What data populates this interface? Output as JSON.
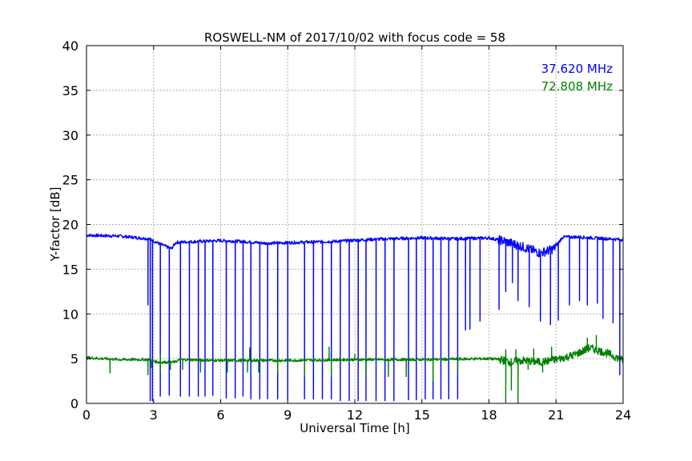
{
  "chart_data": {
    "type": "line",
    "title": "ROSWELL-NM of 2017/10/02 with focus code = 58",
    "xlabel": "Universal Time [h]",
    "ylabel": "Y-factor [dB]",
    "xlim": [
      0,
      24
    ],
    "ylim": [
      0,
      40
    ],
    "xticks": [
      0,
      3,
      6,
      9,
      12,
      15,
      18,
      21,
      24
    ],
    "yticks": [
      0,
      5,
      10,
      15,
      20,
      25,
      30,
      35,
      40
    ],
    "grid": true,
    "legend_position": "top-right",
    "series": [
      {
        "name": "37.620 MHz",
        "color": "#0000ff",
        "baseline": [
          [
            0,
            18.8
          ],
          [
            1.5,
            18.7
          ],
          [
            2.8,
            18.4
          ],
          [
            3.3,
            17.8
          ],
          [
            3.8,
            17.3
          ],
          [
            4.0,
            18.0
          ],
          [
            6.0,
            18.2
          ],
          [
            7.0,
            18.1
          ],
          [
            8.0,
            17.9
          ],
          [
            9.5,
            18.0
          ],
          [
            11.0,
            18.1
          ],
          [
            12.5,
            18.3
          ],
          [
            13.5,
            18.4
          ],
          [
            15.0,
            18.5
          ],
          [
            16.5,
            18.4
          ],
          [
            18.0,
            18.5
          ],
          [
            18.6,
            18.2
          ],
          [
            19.4,
            17.6
          ],
          [
            20.3,
            16.8
          ],
          [
            20.9,
            17.3
          ],
          [
            21.3,
            18.6
          ],
          [
            22.0,
            18.6
          ],
          [
            24,
            18.3
          ]
        ],
        "dips": [
          [
            2.75,
            11.0
          ],
          [
            2.85,
            0.3
          ],
          [
            2.95,
            0.3
          ],
          [
            3.3,
            0.8
          ],
          [
            3.7,
            0.9
          ],
          [
            4.2,
            0.8
          ],
          [
            4.6,
            0.8
          ],
          [
            5.0,
            0.8
          ],
          [
            5.3,
            0.8
          ],
          [
            5.65,
            0.9
          ],
          [
            6.25,
            0.6
          ],
          [
            6.65,
            0.6
          ],
          [
            7.0,
            0.8
          ],
          [
            7.35,
            0.5
          ],
          [
            7.75,
            0.5
          ],
          [
            8.1,
            0.5
          ],
          [
            8.55,
            0.5
          ],
          [
            9.0,
            0.4
          ],
          [
            9.75,
            0.5
          ],
          [
            10.15,
            0.5
          ],
          [
            10.55,
            0.5
          ],
          [
            10.95,
            0.5
          ],
          [
            11.35,
            0.3
          ],
          [
            11.75,
            0.3
          ],
          [
            12.15,
            0.3
          ],
          [
            12.5,
            0.3
          ],
          [
            12.95,
            0.3
          ],
          [
            13.35,
            0.3
          ],
          [
            13.75,
            0.3
          ],
          [
            14.4,
            0.4
          ],
          [
            14.75,
            0.4
          ],
          [
            15.15,
            0.5
          ],
          [
            15.5,
            0.5
          ],
          [
            15.85,
            0.5
          ],
          [
            16.2,
            0.5
          ],
          [
            16.6,
            0.5
          ],
          [
            16.95,
            8.2
          ],
          [
            17.15,
            8.3
          ],
          [
            17.6,
            9.2
          ],
          [
            18.45,
            10.5
          ],
          [
            18.75,
            12.5
          ],
          [
            19.05,
            13.5
          ],
          [
            19.3,
            11.5
          ],
          [
            19.8,
            10.8
          ],
          [
            20.3,
            9.2
          ],
          [
            20.75,
            8.8
          ],
          [
            21.1,
            9.3
          ],
          [
            21.6,
            11.0
          ],
          [
            22.05,
            11.5
          ],
          [
            22.4,
            11.0
          ],
          [
            22.85,
            11.2
          ],
          [
            23.1,
            9.5
          ],
          [
            23.55,
            9.0
          ],
          [
            23.85,
            3.2
          ]
        ]
      },
      {
        "name": "72.808 MHz",
        "color": "#008000",
        "baseline": [
          [
            0,
            5.1
          ],
          [
            1.5,
            4.9
          ],
          [
            2.8,
            4.9
          ],
          [
            3.2,
            4.6
          ],
          [
            3.9,
            4.6
          ],
          [
            4.2,
            4.9
          ],
          [
            6.0,
            4.8
          ],
          [
            9.0,
            4.8
          ],
          [
            12.0,
            4.9
          ],
          [
            15.0,
            4.9
          ],
          [
            18.0,
            5.0
          ],
          [
            18.5,
            4.9
          ],
          [
            19.0,
            4.6
          ],
          [
            19.5,
            4.8
          ],
          [
            20.3,
            4.6
          ],
          [
            21.0,
            4.9
          ],
          [
            21.8,
            5.4
          ],
          [
            22.5,
            6.2
          ],
          [
            23.3,
            5.6
          ],
          [
            24,
            4.8
          ]
        ],
        "dips": [
          [
            1.05,
            3.4
          ],
          [
            2.75,
            3.2
          ],
          [
            2.9,
            4.0
          ],
          [
            3.3,
            3.5
          ],
          [
            3.75,
            3.8
          ],
          [
            4.3,
            3.8
          ],
          [
            5.1,
            3.5
          ],
          [
            6.3,
            3.5
          ],
          [
            7.2,
            3.5
          ],
          [
            7.7,
            3.5
          ],
          [
            8.55,
            3.5
          ],
          [
            9.75,
            3.0
          ],
          [
            10.95,
            3.0
          ],
          [
            12.5,
            3.0
          ],
          [
            13.5,
            3.0
          ],
          [
            14.3,
            3.0
          ],
          [
            15.5,
            2.5
          ],
          [
            16.6,
            3.5
          ],
          [
            18.75,
            0.1
          ],
          [
            19.0,
            1.5
          ],
          [
            19.3,
            0.0
          ],
          [
            19.75,
            3.8
          ],
          [
            20.4,
            3.5
          ]
        ],
        "spikes": [
          [
            3.3,
            5.4
          ],
          [
            7.3,
            6.2
          ],
          [
            10.85,
            6.3
          ],
          [
            12.0,
            5.5
          ],
          [
            18.75,
            6.0
          ],
          [
            19.2,
            6.0
          ],
          [
            20.0,
            6.1
          ],
          [
            20.8,
            6.3
          ],
          [
            22.4,
            7.3
          ],
          [
            22.8,
            7.6
          ],
          [
            23.3,
            5.8
          ]
        ]
      }
    ]
  }
}
